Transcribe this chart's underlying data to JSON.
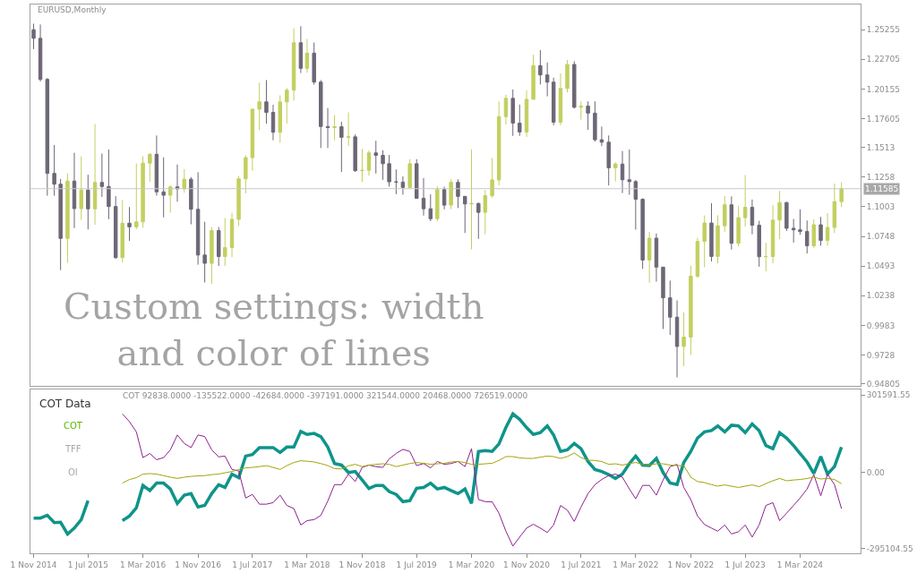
{
  "chart_data": [
    {
      "type": "candlestick",
      "title": "EURUSD,Monthly",
      "tick_labels": "y",
      "colors": [
        "#6d6776",
        "#6d6776",
        "#6d6776",
        "#6d6776",
        "#6d6776",
        "#c3cf5f",
        "#6d6776",
        "#c3cf5f",
        "#6d6776",
        "#c3cf5f",
        "#6d6776",
        "#6d6776",
        "#6d6776",
        "#c3cf5f",
        "#6d6776",
        "#c3cf5f",
        "#c3cf5f",
        "#c3cf5f",
        "#6d6776",
        "#6d6776",
        "#c3cf5f",
        "#6d6776",
        "#c3cf5f",
        "#6d6776",
        "#6d6776",
        "#6d6776",
        "#c3cf5f",
        "#6d6776",
        "#c3cf5f",
        "#c3cf5f",
        "#c3cf5f",
        "#c3cf5f",
        "#c3cf5f",
        "#c3cf5f",
        "#6d6776",
        "#6d6776",
        "#c3cf5f",
        "#c3cf5f",
        "#c3cf5f",
        "#6d6776",
        "#c3cf5f",
        "#6d6776",
        "#6d6776",
        "#6d6776",
        "#c3cf5f",
        "#6d6776",
        "#c3cf5f",
        "#6d6776",
        "#c3cf5f",
        "#c3cf5f",
        "#6d6776",
        "#6d6776",
        "#6d6776",
        "#6d6776",
        "#6d6776",
        "#c3cf5f",
        "#6d6776",
        "#6d6776",
        "#6d6776",
        "#c3cf5f",
        "#6d6776",
        "#c3cf5f",
        "#6d6776",
        "#6d6776",
        "#c3cf5f",
        "#6d6776",
        "#c3cf5f",
        "#c3cf5f",
        "#c3cf5f",
        "#c3cf5f",
        "#6d6776",
        "#6d6776",
        "#c3cf5f",
        "#c3cf5f",
        "#6d6776",
        "#6d6776",
        "#6d6776",
        "#c3cf5f",
        "#c3cf5f",
        "#6d6776",
        "#c3cf5f",
        "#6d6776",
        "#6d6776",
        "#6d6776",
        "#6d6776",
        "#c3cf5f",
        "#6d6776",
        "#6d6776",
        "#6d6776",
        "#6d6776",
        "#c3cf5f",
        "#6d6776",
        "#6d6776",
        "#6d6776",
        "#6d6776",
        "#c3cf5f",
        "#c3cf5f",
        "#c3cf5f",
        "#c3cf5f",
        "#6d6776",
        "#c3cf5f",
        "#c3cf5f",
        "#6d6776",
        "#c3cf5f",
        "#c3cf5f",
        "#6d6776",
        "#6d6776",
        "#c3cf5f",
        "#c3cf5f",
        "#c3cf5f",
        "#6d6776",
        "#6d6776",
        "#6d6776",
        "#6d6776",
        "#c3cf5f",
        "#6d6776",
        "#c3cf5f",
        "#c3cf5f",
        "#c3cf5f"
      ],
      "x": [
        "2014-11",
        "2014-12",
        "2015-01",
        "2015-02",
        "2015-03",
        "2015-04",
        "2015-05",
        "2015-06",
        "2015-07",
        "2015-08",
        "2015-09",
        "2015-10",
        "2015-11",
        "2015-12",
        "2016-01",
        "2016-02",
        "2016-03",
        "2016-04",
        "2016-05",
        "2016-06",
        "2016-07",
        "2016-08",
        "2016-09",
        "2016-10",
        "2016-11",
        "2016-12",
        "2017-01",
        "2017-02",
        "2017-03",
        "2017-04",
        "2017-05",
        "2017-06",
        "2017-07",
        "2017-08",
        "2017-09",
        "2017-10",
        "2017-11",
        "2017-12",
        "2018-01",
        "2018-02",
        "2018-03",
        "2018-04",
        "2018-05",
        "2018-06",
        "2018-07",
        "2018-08",
        "2018-09",
        "2018-10",
        "2018-11",
        "2018-12",
        "2019-01",
        "2019-02",
        "2019-03",
        "2019-04",
        "2019-05",
        "2019-06",
        "2019-07",
        "2019-08",
        "2019-09",
        "2019-10",
        "2019-11",
        "2019-12",
        "2020-01",
        "2020-02",
        "2020-03",
        "2020-04",
        "2020-05",
        "2020-06",
        "2020-07",
        "2020-08",
        "2020-09",
        "2020-10",
        "2020-11",
        "2020-12",
        "2021-01",
        "2021-02",
        "2021-03",
        "2021-04",
        "2021-05",
        "2021-06",
        "2021-07",
        "2021-08",
        "2021-09",
        "2021-10",
        "2021-11",
        "2021-12",
        "2022-01",
        "2022-02",
        "2022-03",
        "2022-04",
        "2022-05",
        "2022-06",
        "2022-07",
        "2022-08",
        "2022-09",
        "2022-10",
        "2022-11",
        "2022-12",
        "2023-01",
        "2023-02",
        "2023-03",
        "2023-04",
        "2023-05",
        "2023-06",
        "2023-07",
        "2023-08",
        "2023-09",
        "2023-10",
        "2023-11",
        "2023-12",
        "2024-01",
        "2024-02",
        "2024-03",
        "2024-04",
        "2024-05",
        "2024-06",
        "2024-07",
        "2024-08",
        "2024-09"
      ],
      "ohlc": [
        [
          1.2525,
          1.2577,
          1.2358,
          1.2451
        ],
        [
          1.2451,
          1.257,
          1.208,
          1.2098
        ],
        [
          1.2098,
          1.211,
          1.1098,
          1.129
        ],
        [
          1.129,
          1.1534,
          1.1098,
          1.1197
        ],
        [
          1.1197,
          1.1243,
          1.0458,
          1.0731
        ],
        [
          1.0731,
          1.129,
          1.052,
          1.1224
        ],
        [
          1.1224,
          1.1467,
          1.0819,
          1.0987
        ],
        [
          1.0987,
          1.1436,
          1.0889,
          1.1147
        ],
        [
          1.1147,
          1.1278,
          1.0808,
          1.0985
        ],
        [
          1.0985,
          1.1714,
          1.0848,
          1.1212
        ],
        [
          1.1212,
          1.146,
          1.1087,
          1.1177
        ],
        [
          1.1177,
          1.1495,
          1.0896,
          1.1005
        ],
        [
          1.1005,
          1.1094,
          1.0557,
          1.0565
        ],
        [
          1.0565,
          1.106,
          1.0524,
          1.0862
        ],
        [
          1.0862,
          1.1,
          1.071,
          1.083
        ],
        [
          1.083,
          1.1376,
          1.081,
          1.0873
        ],
        [
          1.0873,
          1.1437,
          1.0823,
          1.1378
        ],
        [
          1.1378,
          1.1464,
          1.1217,
          1.1454
        ],
        [
          1.1454,
          1.1616,
          1.1098,
          1.1131
        ],
        [
          1.1131,
          1.1428,
          1.0912,
          1.1102
        ],
        [
          1.1102,
          1.1186,
          1.0952,
          1.1174
        ],
        [
          1.1174,
          1.1366,
          1.1046,
          1.1157
        ],
        [
          1.1157,
          1.1327,
          1.1123,
          1.124
        ],
        [
          1.124,
          1.1258,
          1.0852,
          1.0981
        ],
        [
          1.0981,
          1.13,
          1.0505,
          1.0588
        ],
        [
          1.0588,
          1.0874,
          1.0352,
          1.0517
        ],
        [
          1.0517,
          1.0829,
          1.034,
          1.0798
        ],
        [
          1.0798,
          1.0829,
          1.0494,
          1.0575
        ],
        [
          1.0575,
          1.0906,
          1.0493,
          1.0652
        ],
        [
          1.0652,
          1.0951,
          1.0569,
          1.0895
        ],
        [
          1.0895,
          1.1268,
          1.0839,
          1.1243
        ],
        [
          1.1243,
          1.1446,
          1.1118,
          1.1425
        ],
        [
          1.1425,
          1.1846,
          1.1313,
          1.1842
        ],
        [
          1.1842,
          1.207,
          1.1662,
          1.1905
        ],
        [
          1.1905,
          1.2092,
          1.1717,
          1.1814
        ],
        [
          1.1814,
          1.188,
          1.1575,
          1.1644
        ],
        [
          1.1644,
          1.1961,
          1.1554,
          1.1904
        ],
        [
          1.1904,
          1.2023,
          1.1717,
          1.2005
        ],
        [
          1.2005,
          1.2537,
          1.1916,
          1.2413
        ],
        [
          1.2413,
          1.2555,
          1.2153,
          1.2193
        ],
        [
          1.2193,
          1.2446,
          1.2155,
          1.2324
        ],
        [
          1.2324,
          1.2414,
          1.2053,
          1.2075
        ],
        [
          1.2075,
          1.2092,
          1.1508,
          1.1693
        ],
        [
          1.1693,
          1.1852,
          1.1508,
          1.1684
        ],
        [
          1.1684,
          1.1791,
          1.1573,
          1.1691
        ],
        [
          1.1691,
          1.1734,
          1.1301,
          1.16
        ],
        [
          1.16,
          1.1815,
          1.1526,
          1.1604
        ],
        [
          1.1604,
          1.1625,
          1.1302,
          1.1313
        ],
        [
          1.1313,
          1.15,
          1.1216,
          1.1316
        ],
        [
          1.1316,
          1.1487,
          1.1269,
          1.1466
        ],
        [
          1.1466,
          1.157,
          1.1289,
          1.1445
        ],
        [
          1.1445,
          1.1489,
          1.1234,
          1.1373
        ],
        [
          1.1373,
          1.1448,
          1.1176,
          1.1217
        ],
        [
          1.1217,
          1.1324,
          1.1111,
          1.1215
        ],
        [
          1.1215,
          1.1264,
          1.1107,
          1.1169
        ],
        [
          1.1169,
          1.1412,
          1.116,
          1.1373
        ],
        [
          1.1373,
          1.1412,
          1.107,
          1.1076
        ],
        [
          1.1076,
          1.125,
          1.0927,
          1.0986
        ],
        [
          1.0986,
          1.1109,
          1.0879,
          1.09
        ],
        [
          1.09,
          1.1179,
          1.0879,
          1.1151
        ],
        [
          1.1151,
          1.1176,
          1.0981,
          1.1017
        ],
        [
          1.1017,
          1.124,
          1.0981,
          1.1213
        ],
        [
          1.1213,
          1.1239,
          1.0992,
          1.1092
        ],
        [
          1.1092,
          1.1096,
          1.0778,
          1.1027
        ],
        [
          1.1027,
          1.1495,
          1.0636,
          1.1031
        ],
        [
          1.1031,
          1.1039,
          1.0727,
          1.0955
        ],
        [
          1.0955,
          1.1147,
          1.0767,
          1.1098
        ],
        [
          1.1098,
          1.1422,
          1.108,
          1.1234
        ],
        [
          1.1234,
          1.1908,
          1.1186,
          1.1778
        ],
        [
          1.1778,
          1.1966,
          1.171,
          1.1935
        ],
        [
          1.1935,
          1.2011,
          1.1612,
          1.1722
        ],
        [
          1.1722,
          1.1881,
          1.1612,
          1.1646
        ],
        [
          1.1646,
          1.2004,
          1.1603,
          1.1927
        ],
        [
          1.1927,
          1.231,
          1.1925,
          1.2216
        ],
        [
          1.2216,
          1.2349,
          1.2054,
          1.2136
        ],
        [
          1.2136,
          1.2243,
          1.1952,
          1.2074
        ],
        [
          1.2074,
          1.2113,
          1.1704,
          1.173
        ],
        [
          1.173,
          1.215,
          1.1704,
          1.202
        ],
        [
          1.202,
          1.2266,
          1.1986,
          1.2226
        ],
        [
          1.2226,
          1.2254,
          1.1847,
          1.1858
        ],
        [
          1.1858,
          1.1909,
          1.1752,
          1.1869
        ],
        [
          1.1869,
          1.1909,
          1.1664,
          1.1808
        ],
        [
          1.1808,
          1.1909,
          1.1563,
          1.1579
        ],
        [
          1.1579,
          1.1692,
          1.1524,
          1.1558
        ],
        [
          1.1558,
          1.1616,
          1.1186,
          1.1338
        ],
        [
          1.1338,
          1.1386,
          1.1222,
          1.137
        ],
        [
          1.137,
          1.1482,
          1.1121,
          1.1235
        ],
        [
          1.1235,
          1.1495,
          1.1106,
          1.1219
        ],
        [
          1.1219,
          1.1233,
          1.0806,
          1.1067
        ],
        [
          1.1067,
          1.1076,
          1.047,
          1.0545
        ],
        [
          1.0545,
          1.0787,
          1.0349,
          1.0733
        ],
        [
          1.0733,
          1.0773,
          1.0359,
          1.0484
        ],
        [
          1.0484,
          1.0486,
          0.9952,
          1.022
        ],
        [
          1.022,
          1.0368,
          0.9901,
          1.0054
        ],
        [
          1.0054,
          1.0198,
          0.9536,
          0.9802
        ],
        [
          0.9802,
          1.0094,
          0.9632,
          0.9882
        ],
        [
          0.9882,
          1.0497,
          0.973,
          1.0406
        ],
        [
          1.0406,
          1.0736,
          1.0393,
          1.0705
        ],
        [
          1.0705,
          1.0929,
          1.0483,
          1.0863
        ],
        [
          1.0863,
          1.1033,
          1.0533,
          1.0576
        ],
        [
          1.0576,
          1.093,
          1.0516,
          1.0839
        ],
        [
          1.0839,
          1.1095,
          1.0788,
          1.102
        ],
        [
          1.102,
          1.1092,
          1.0635,
          1.0689
        ],
        [
          1.0689,
          1.1012,
          1.0662,
          1.0909
        ],
        [
          1.0909,
          1.1276,
          1.0833,
          1.0998
        ],
        [
          1.0998,
          1.1065,
          1.0766,
          1.0844
        ],
        [
          1.0844,
          1.0882,
          1.0488,
          1.0573
        ],
        [
          1.0573,
          1.0695,
          1.0448,
          1.0575
        ],
        [
          1.0575,
          1.1017,
          1.0517,
          1.0888
        ],
        [
          1.0888,
          1.114,
          1.0724,
          1.1039
        ],
        [
          1.1039,
          1.1046,
          1.0795,
          1.0818
        ],
        [
          1.0818,
          1.0898,
          1.0695,
          1.0805
        ],
        [
          1.0805,
          1.0981,
          1.0762,
          1.079
        ],
        [
          1.079,
          1.0885,
          1.0601,
          1.0667
        ],
        [
          1.0667,
          1.0895,
          1.065,
          1.0848
        ],
        [
          1.0848,
          1.0916,
          1.0668,
          1.0713
        ],
        [
          1.0713,
          1.0948,
          1.0667,
          1.0825
        ],
        [
          1.0825,
          1.1202,
          1.0777,
          1.1047
        ],
        [
          1.1047,
          1.1214,
          1.1001,
          1.1159
        ]
      ],
      "xlim": [
        "2014-10-18",
        "2024-11-25"
      ],
      "ylim": [
        0.9463,
        1.2742
      ],
      "yticks": [
        1.25255,
        1.22705,
        1.20155,
        1.17605,
        1.1513,
        1.1258,
        1.1003,
        1.0748,
        1.0493,
        1.0238,
        0.9983,
        0.9728,
        0.94805
      ],
      "ref_lines": [
        {
          "axis": "y",
          "value": 1.11585,
          "label": "1.11585",
          "color": "#c8c8c8"
        }
      ],
      "annotations": [
        "Custom settings: width\nand color of lines"
      ]
    },
    {
      "type": "line",
      "x": [
        "2014-11",
        "2014-12",
        "2015-01",
        "2015-02",
        "2015-03",
        "2015-04",
        "2015-05",
        "2015-06",
        "2015-07",
        "2015-08",
        "2015-09",
        "2015-10",
        "2015-11",
        "2015-12",
        "2016-01",
        "2016-02",
        "2016-03",
        "2016-04",
        "2016-05",
        "2016-06",
        "2016-07",
        "2016-08",
        "2016-09",
        "2016-10",
        "2016-11",
        "2016-12",
        "2017-01",
        "2017-02",
        "2017-03",
        "2017-04",
        "2017-05",
        "2017-06",
        "2017-07",
        "2017-08",
        "2017-09",
        "2017-10",
        "2017-11",
        "2017-12",
        "2018-01",
        "2018-02",
        "2018-03",
        "2018-04",
        "2018-05",
        "2018-06",
        "2018-07",
        "2018-08",
        "2018-09",
        "2018-10",
        "2018-11",
        "2018-12",
        "2019-01",
        "2019-02",
        "2019-03",
        "2019-04",
        "2019-05",
        "2019-06",
        "2019-07",
        "2019-08",
        "2019-09",
        "2019-10",
        "2019-11",
        "2019-12",
        "2020-01",
        "2020-02",
        "2020-03",
        "2020-04",
        "2020-05",
        "2020-06",
        "2020-07",
        "2020-08",
        "2020-09",
        "2020-10",
        "2020-11",
        "2020-12",
        "2021-01",
        "2021-02",
        "2021-03",
        "2021-04",
        "2021-05",
        "2021-06",
        "2021-07",
        "2021-08",
        "2021-09",
        "2021-10",
        "2021-11",
        "2021-12",
        "2022-01",
        "2022-02",
        "2022-03",
        "2022-04",
        "2022-05",
        "2022-06",
        "2022-07",
        "2022-08",
        "2022-09",
        "2022-10",
        "2022-11",
        "2022-12",
        "2023-01",
        "2023-02",
        "2023-03",
        "2023-04",
        "2023-05",
        "2023-06",
        "2023-07",
        "2023-08",
        "2023-09",
        "2023-10",
        "2023-11",
        "2023-12",
        "2024-01",
        "2024-02",
        "2024-03",
        "2024-04",
        "2024-05",
        "2024-06",
        "2024-07",
        "2024-08",
        "2024-09"
      ],
      "series": [
        {
          "color": "#0f948a",
          "values": [
            -177000,
            -177000,
            -166000,
            -195000,
            -193000,
            -239000,
            -216000,
            -183000,
            -109000,
            null,
            null,
            null,
            null,
            -187000,
            -169000,
            -137000,
            -50000,
            -70000,
            -41000,
            -41000,
            -64000,
            -120000,
            -88000,
            -82000,
            -134000,
            -128000,
            -82000,
            -47000,
            -58000,
            -6000,
            -20000,
            64000,
            70000,
            97000,
            97000,
            97000,
            78000,
            99000,
            99000,
            160000,
            148000,
            152000,
            140000,
            99000,
            35000,
            29000,
            0,
            4000,
            -29000,
            -62000,
            -50000,
            -50000,
            -74000,
            -85000,
            -113000,
            -109000,
            -61000,
            -58000,
            -41000,
            -64000,
            -58000,
            -70000,
            -82000,
            -64000,
            -120000,
            82000,
            85000,
            82000,
            111000,
            175000,
            228000,
            207000,
            175000,
            148000,
            155000,
            181000,
            146000,
            82000,
            88000,
            113000,
            93000,
            43000,
            12000,
            4000,
            -8000,
            -23000,
            -6000,
            35000,
            64000,
            29000,
            27000,
            55000,
            0,
            -41000,
            -47000,
            39000,
            82000,
            134000,
            158000,
            163000,
            181000,
            158000,
            184000,
            181000,
            155000,
            189000,
            163000,
            105000,
            93000,
            155000,
            134000,
            105000,
            74000,
            41000,
            -4000,
            62000,
            -6000,
            23000,
            99000
          ]
        },
        {
          "color": "#8e1f8e",
          "values": [
            null,
            null,
            null,
            null,
            null,
            null,
            null,
            null,
            null,
            null,
            null,
            null,
            null,
            228000,
            198000,
            158000,
            58000,
            74000,
            50000,
            58000,
            88000,
            146000,
            113000,
            97000,
            146000,
            140000,
            88000,
            61000,
            64000,
            12000,
            6000,
            -99000,
            -85000,
            -123000,
            -123000,
            -117000,
            -88000,
            -128000,
            -140000,
            -204000,
            -187000,
            -183000,
            -167000,
            -111000,
            -47000,
            -47000,
            -6000,
            -35000,
            20000,
            29000,
            23000,
            20000,
            53000,
            74000,
            90000,
            82000,
            27000,
            35000,
            18000,
            43000,
            32000,
            35000,
            43000,
            23000,
            93000,
            -105000,
            -113000,
            -114000,
            -158000,
            -228000,
            -286000,
            -251000,
            -216000,
            -201000,
            -216000,
            -233000,
            -204000,
            -128000,
            -146000,
            -190000,
            -134000,
            -82000,
            -47000,
            -27000,
            -12000,
            -6000,
            -18000,
            -64000,
            -102000,
            -50000,
            -50000,
            -88000,
            -29000,
            23000,
            32000,
            -58000,
            -105000,
            -169000,
            -202000,
            -216000,
            -228000,
            -204000,
            -239000,
            -230000,
            -204000,
            -251000,
            -204000,
            -128000,
            -117000,
            -187000,
            -158000,
            -128000,
            -99000,
            -64000,
            -8000,
            -90000,
            -6000,
            -47000,
            -140000
          ]
        },
        {
          "color": "#a3a30c",
          "values": [
            null,
            null,
            null,
            null,
            null,
            null,
            null,
            null,
            null,
            null,
            null,
            null,
            null,
            -41000,
            -27000,
            -20000,
            -6000,
            -4000,
            -6000,
            -12000,
            -18000,
            -23000,
            -18000,
            -15000,
            -13000,
            -12000,
            -8000,
            -6000,
            -1000,
            4000,
            12000,
            18000,
            20000,
            23000,
            27000,
            20000,
            12000,
            27000,
            39000,
            46000,
            44000,
            41000,
            35000,
            27000,
            15000,
            14000,
            26000,
            32000,
            23000,
            29000,
            32000,
            34000,
            32000,
            23000,
            29000,
            35000,
            39000,
            36000,
            32000,
            34000,
            36000,
            41000,
            43000,
            39000,
            32000,
            32000,
            34000,
            36000,
            47000,
            62000,
            62000,
            57000,
            55000,
            55000,
            60000,
            64000,
            62000,
            55000,
            62000,
            76000,
            58000,
            48000,
            47000,
            43000,
            32000,
            34000,
            29000,
            35000,
            39000,
            32000,
            29000,
            34000,
            34000,
            29000,
            27000,
            27000,
            -18000,
            -35000,
            -39000,
            -47000,
            -53000,
            -48000,
            -53000,
            -58000,
            -53000,
            -48000,
            -55000,
            -43000,
            -32000,
            -23000,
            -32000,
            -29000,
            -27000,
            -23000,
            -18000,
            -25000,
            -23000,
            -27000,
            -43000
          ]
        }
      ],
      "xlim": [
        "2014-10-18",
        "2024-11-25"
      ],
      "xticks": [
        {
          "value": "2014-11-01",
          "label": "1 Nov 2014"
        },
        {
          "value": "2015-07-01",
          "label": "1 Jul 2015"
        },
        {
          "value": "2016-03-01",
          "label": "1 Mar 2016"
        },
        {
          "value": "2016-11-01",
          "label": "1 Nov 2016"
        },
        {
          "value": "2017-07-01",
          "label": "1 Jul 2017"
        },
        {
          "value": "2018-03-01",
          "label": "1 Mar 2018"
        },
        {
          "value": "2018-11-01",
          "label": "1 Nov 2018"
        },
        {
          "value": "2019-07-01",
          "label": "1 Jul 2019"
        },
        {
          "value": "2020-03-01",
          "label": "1 Mar 2020"
        },
        {
          "value": "2020-11-01",
          "label": "1 Nov 2020"
        },
        {
          "value": "2021-07-01",
          "label": "1 Jul 2021"
        },
        {
          "value": "2022-03-01",
          "label": "1 Mar 2022"
        },
        {
          "value": "2022-11-01",
          "label": "1 Nov 2022"
        },
        {
          "value": "2023-07-01",
          "label": "1 Jul 2023"
        },
        {
          "value": "2024-03-01",
          "label": "1 Mar 2024"
        }
      ],
      "ylim": [
        -314000,
        323000
      ],
      "yticks": [
        {
          "value": 301591.55,
          "label": "301591.55"
        },
        {
          "value": 0,
          "label": "0.00"
        },
        {
          "value": -295104.55,
          "label": "-295104.55"
        }
      ],
      "annotations": [
        "COT 92838.0000 -135522.0000 -42684.0000 -397191.0000 321544.0000 20468.0000 726519.0000",
        "COT Data",
        "COT",
        "TFF",
        "OI"
      ]
    }
  ]
}
